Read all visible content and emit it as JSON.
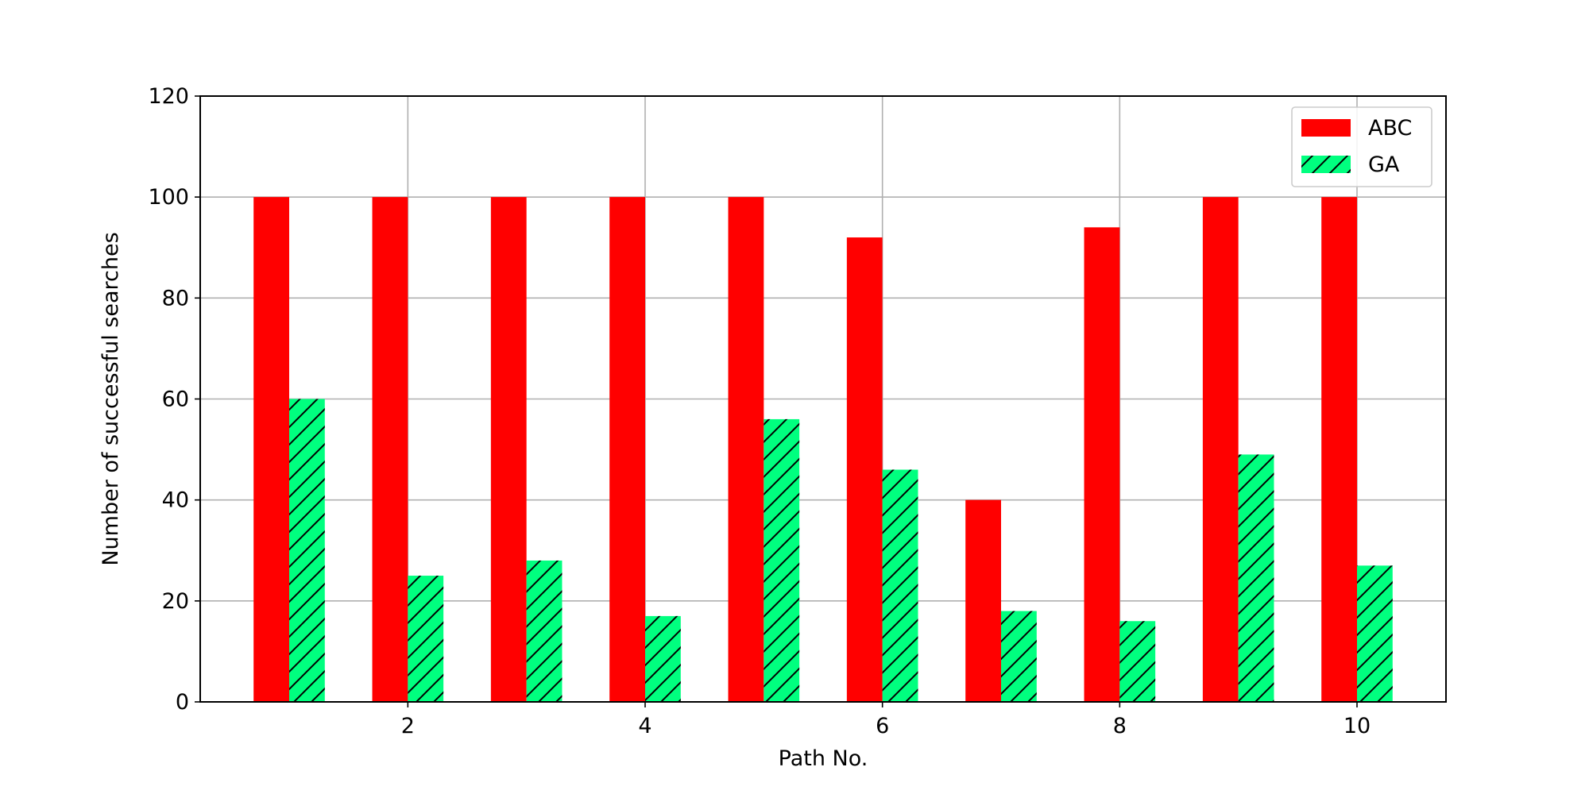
{
  "chart_data": {
    "type": "bar",
    "xlabel": "Path No.",
    "ylabel": "Number of successful searches",
    "ylim": [
      0,
      120
    ],
    "xlim": [
      0.25,
      10.75
    ],
    "x": [
      1,
      2,
      3,
      4,
      5,
      6,
      7,
      8,
      9,
      10
    ],
    "x_ticks": [
      2,
      4,
      6,
      8,
      10
    ],
    "y_ticks": [
      0,
      20,
      40,
      60,
      80,
      100,
      120
    ],
    "grid": true,
    "legend_position": "top-right",
    "series": [
      {
        "name": "ABC",
        "color": "#ff0000",
        "hatch": "none",
        "values": [
          100,
          100,
          100,
          100,
          100,
          92,
          40,
          94,
          100,
          100
        ]
      },
      {
        "name": "GA",
        "color": "#00ff7f",
        "hatch": "forward-diagonal",
        "values": [
          60,
          25,
          28,
          17,
          56,
          46,
          18,
          16,
          49,
          27
        ]
      }
    ]
  }
}
